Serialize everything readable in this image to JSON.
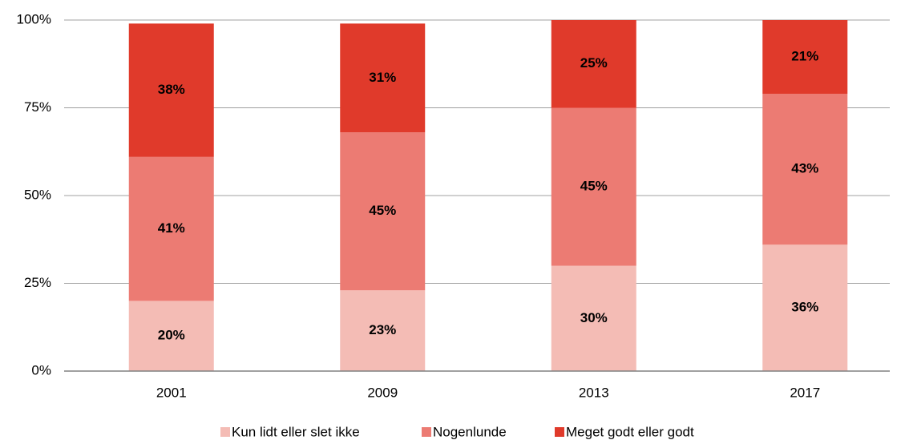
{
  "chart_data": {
    "type": "stacked_bar",
    "categories": [
      "2001",
      "2009",
      "2013",
      "2017"
    ],
    "series": [
      {
        "name": "Kun lidt eller slet ikke",
        "color": "#f4bcb5",
        "values": [
          20,
          23,
          30,
          36
        ],
        "value_labels": [
          "20%",
          "23%",
          "30%",
          "36%"
        ]
      },
      {
        "name": "Nogenlunde",
        "color": "#ec7b73",
        "values": [
          41,
          45,
          45,
          43
        ],
        "value_labels": [
          "41%",
          "45%",
          "45%",
          "43%"
        ]
      },
      {
        "name": "Meget godt eller godt",
        "color": "#e03a2b",
        "values": [
          38,
          31,
          25,
          21
        ],
        "value_labels": [
          "38%",
          "31%",
          "25%",
          "21%"
        ]
      }
    ],
    "ylim": [
      0,
      100
    ],
    "yticks": [
      {
        "value": 0,
        "label": "0%"
      },
      {
        "value": 25,
        "label": "25%"
      },
      {
        "value": 50,
        "label": "50%"
      },
      {
        "value": 75,
        "label": "75%"
      },
      {
        "value": 100,
        "label": "100%"
      }
    ],
    "grid": true,
    "legend": "bottom"
  }
}
